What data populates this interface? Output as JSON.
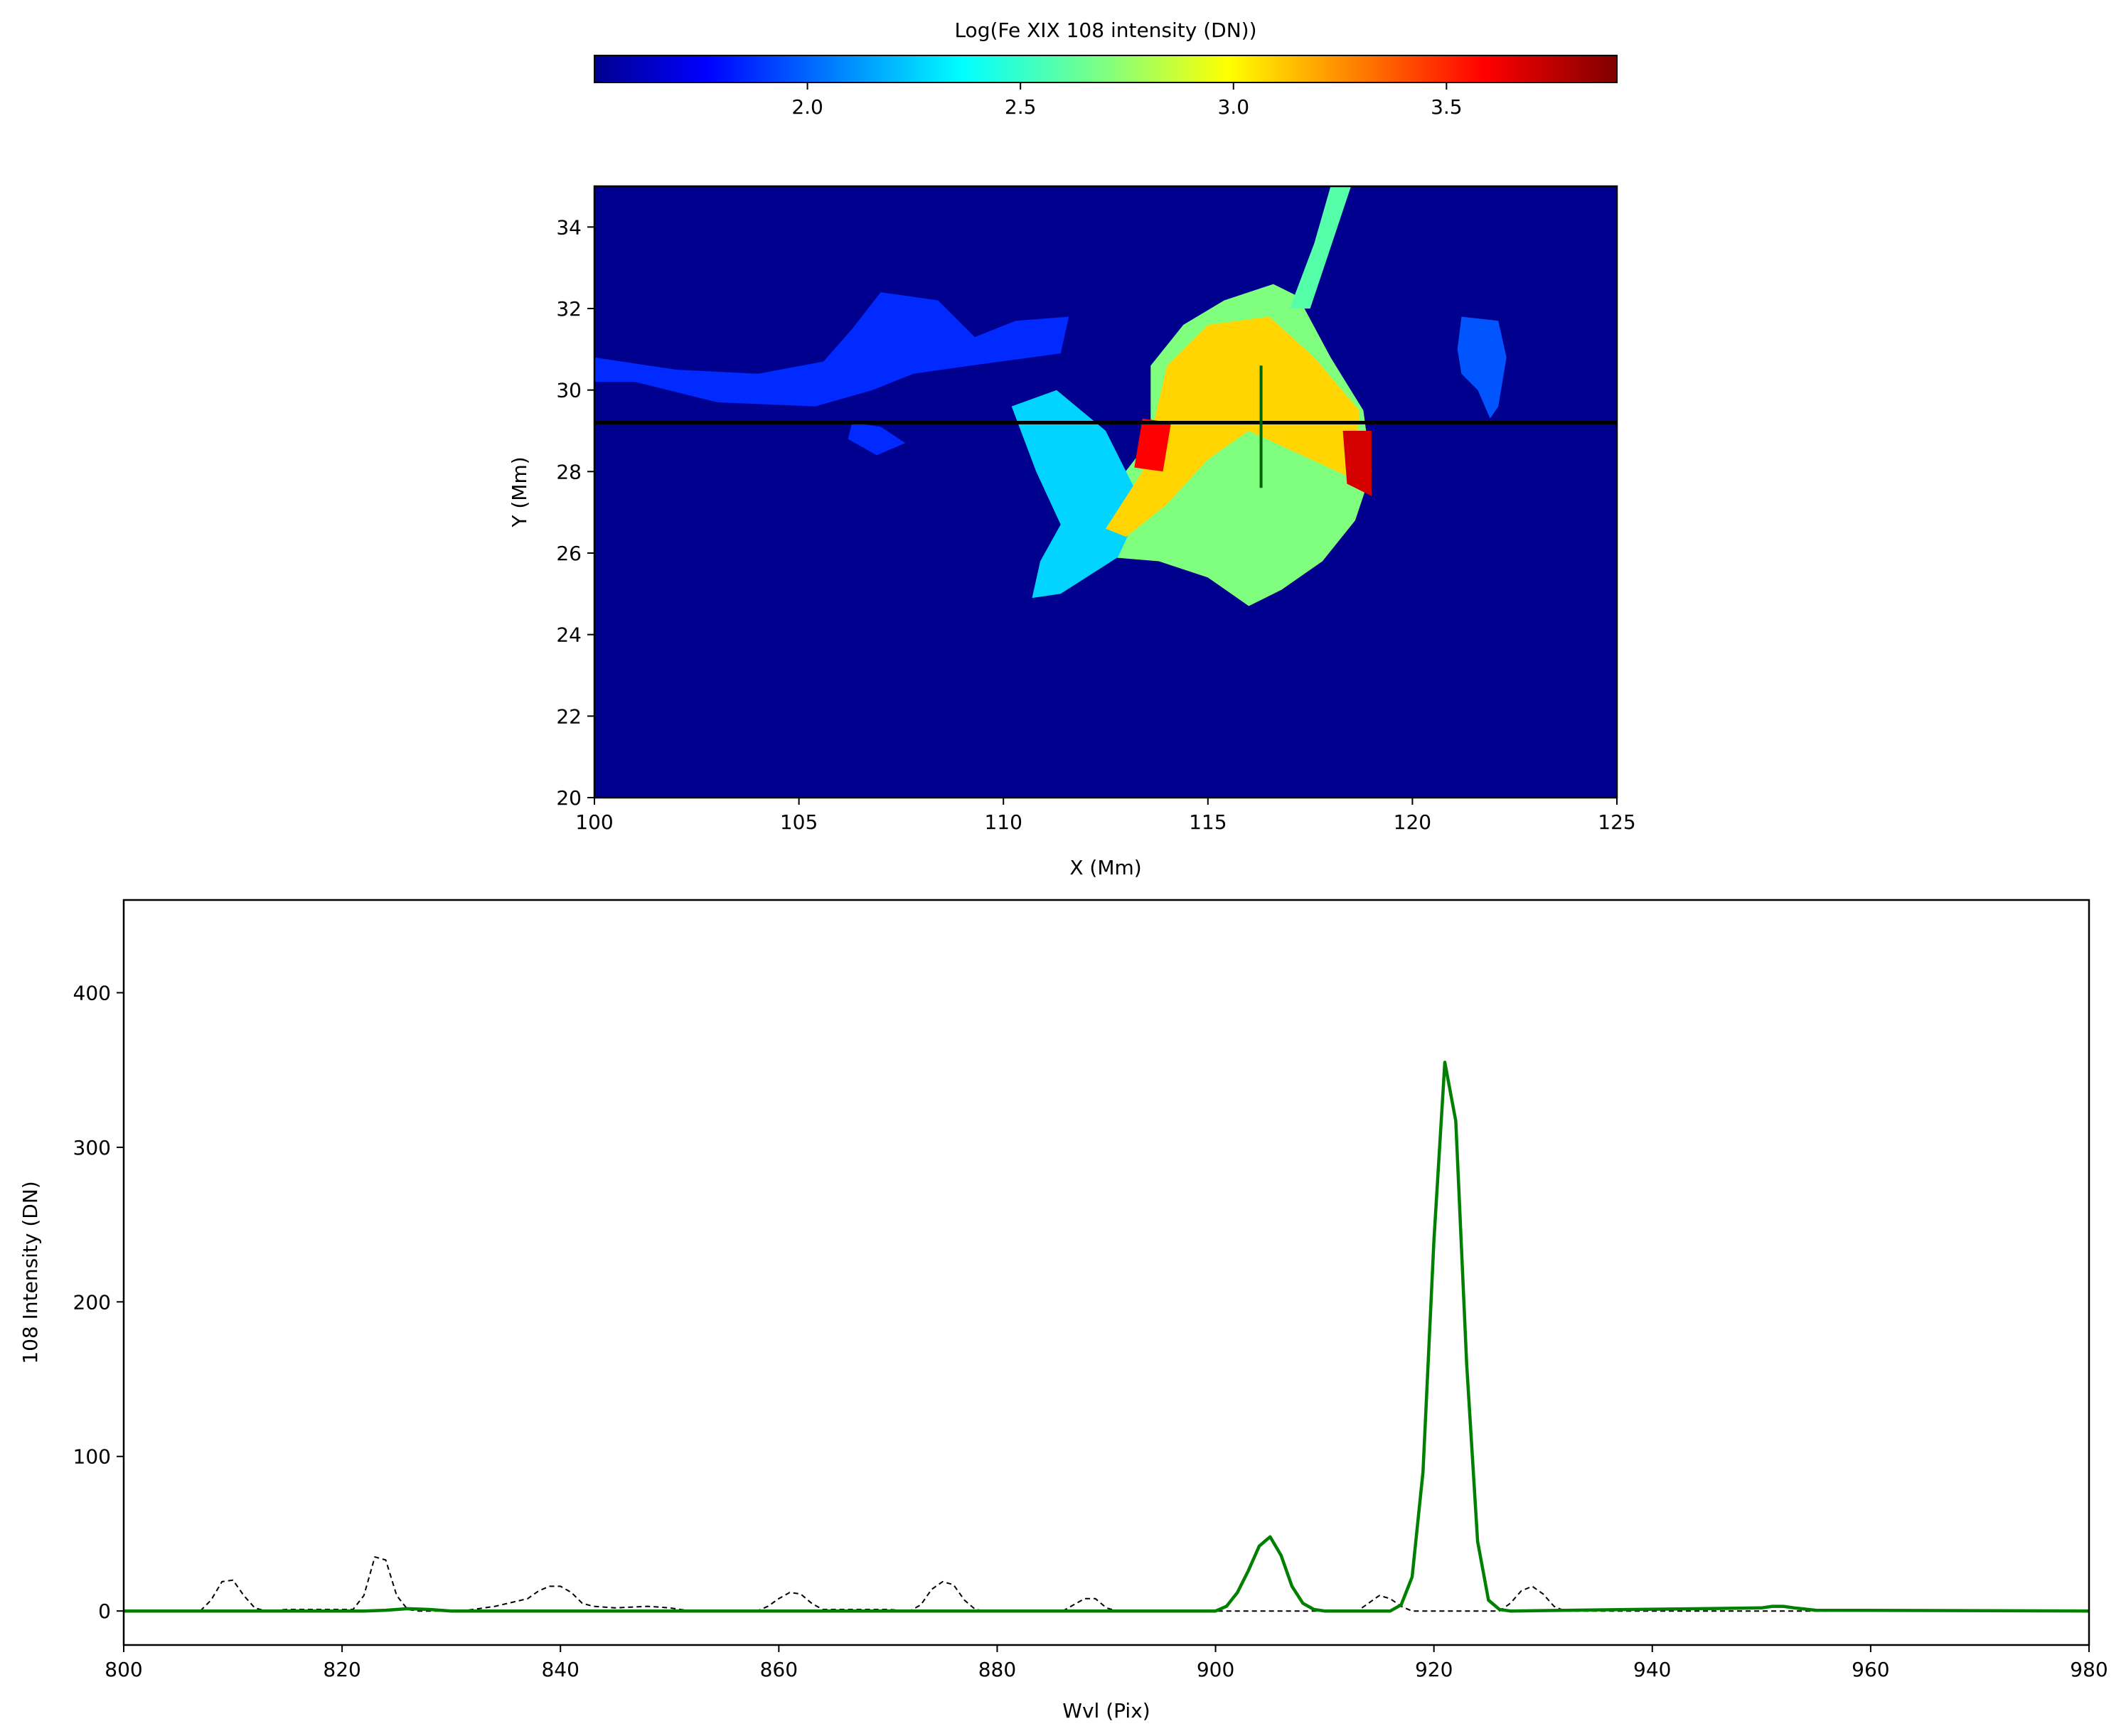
{
  "chart_data": [
    {
      "type": "heatmap",
      "xlabel": "X (Mm)",
      "ylabel": "Y (Mm)",
      "xlim": [
        100,
        125
      ],
      "ylim": [
        20,
        35
      ],
      "xticks": [
        100,
        105,
        110,
        115,
        120,
        125
      ],
      "yticks": [
        20,
        22,
        24,
        26,
        28,
        30,
        32,
        34
      ],
      "xtick_labels": [
        "100",
        "105",
        "110",
        "115",
        "120",
        "125"
      ],
      "ytick_labels": [
        "20",
        "22",
        "24",
        "26",
        "28",
        "30",
        "32",
        "34"
      ],
      "colormap": "jet",
      "background_color": "#00008f",
      "colorbar": {
        "label": "Log(Fe XIX 108 intensity (DN))",
        "range": [
          1.5,
          3.9
        ],
        "ticks": [
          2.0,
          2.5,
          3.0,
          3.5
        ],
        "tick_labels": [
          "2.0",
          "2.5",
          "3.0",
          "3.5"
        ],
        "placement": "top"
      },
      "regions": [
        {
          "name": "main-cloud",
          "points": [
            [
              113.6,
              30.6
            ],
            [
              114.4,
              31.6
            ],
            [
              115.4,
              32.2
            ],
            [
              116.6,
              32.6
            ],
            [
              117.2,
              32.3
            ],
            [
              118.0,
              30.8
            ],
            [
              118.8,
              29.5
            ],
            [
              119.0,
              28.0
            ],
            [
              118.6,
              26.8
            ],
            [
              117.8,
              25.8
            ],
            [
              116.8,
              25.1
            ],
            [
              116.0,
              24.7
            ],
            [
              115.0,
              25.4
            ],
            [
              113.8,
              25.8
            ],
            [
              112.6,
              25.9
            ],
            [
              111.8,
              26.3
            ],
            [
              112.6,
              27.5
            ],
            [
              113.6,
              28.8
            ]
          ],
          "value": 2.7
        },
        {
          "name": "left-band",
          "points": [
            [
              110.2,
              29.6
            ],
            [
              111.3,
              30.0
            ],
            [
              112.5,
              29.0
            ],
            [
              113.4,
              27.2
            ],
            [
              112.8,
              25.9
            ],
            [
              111.4,
              25.0
            ],
            [
              110.7,
              24.9
            ],
            [
              110.9,
              25.8
            ],
            [
              111.4,
              26.7
            ],
            [
              110.8,
              28.0
            ]
          ],
          "value": 2.3
        },
        {
          "name": "left-arc",
          "points": [
            [
              100.0,
              30.8
            ],
            [
              102.0,
              30.5
            ],
            [
              104.0,
              30.4
            ],
            [
              105.6,
              30.7
            ],
            [
              106.3,
              31.5
            ],
            [
              107.0,
              32.4
            ],
            [
              108.4,
              32.2
            ],
            [
              109.3,
              31.3
            ],
            [
              110.3,
              31.7
            ],
            [
              111.6,
              31.8
            ],
            [
              111.4,
              30.9
            ],
            [
              109.2,
              30.6
            ],
            [
              107.8,
              30.4
            ],
            [
              106.8,
              30.0
            ],
            [
              105.4,
              29.6
            ],
            [
              103.0,
              29.7
            ],
            [
              101.0,
              30.2
            ],
            [
              100.0,
              30.2
            ]
          ],
          "value": 1.9
        },
        {
          "name": "left-blob",
          "points": [
            [
              106.3,
              29.2
            ],
            [
              107.0,
              29.1
            ],
            [
              107.6,
              28.7
            ],
            [
              106.9,
              28.4
            ],
            [
              106.2,
              28.8
            ]
          ],
          "value": 1.9
        },
        {
          "name": "right-blob",
          "points": [
            [
              121.2,
              31.8
            ],
            [
              122.1,
              31.7
            ],
            [
              122.3,
              30.8
            ],
            [
              122.1,
              29.6
            ],
            [
              121.9,
              29.3
            ],
            [
              121.6,
              30.0
            ],
            [
              121.2,
              30.4
            ],
            [
              121.1,
              31.0
            ]
          ],
          "value": 2.0
        },
        {
          "name": "top-spike",
          "points": [
            [
              117.0,
              32.0
            ],
            [
              117.6,
              33.6
            ],
            [
              118.0,
              35.0
            ],
            [
              118.5,
              35.0
            ],
            [
              118.0,
              33.5
            ],
            [
              117.5,
              32.0
            ]
          ],
          "value": 2.6
        },
        {
          "name": "yellow-core",
          "points": [
            [
              114.0,
              30.6
            ],
            [
              115.0,
              31.6
            ],
            [
              116.5,
              31.8
            ],
            [
              117.6,
              30.8
            ],
            [
              118.7,
              29.5
            ],
            [
              118.6,
              27.8
            ],
            [
              117.3,
              28.4
            ],
            [
              116.0,
              29.0
            ],
            [
              115.0,
              28.3
            ],
            [
              114.0,
              27.2
            ],
            [
              113.0,
              26.4
            ],
            [
              112.5,
              26.6
            ],
            [
              113.4,
              28.0
            ]
          ],
          "value": 3.1
        },
        {
          "name": "red-left",
          "points": [
            [
              113.4,
              29.3
            ],
            [
              114.1,
              29.2
            ],
            [
              113.9,
              28.0
            ],
            [
              113.2,
              28.1
            ]
          ],
          "value": 3.6
        },
        {
          "name": "red-right",
          "points": [
            [
              118.3,
              29.0
            ],
            [
              119.0,
              29.0
            ],
            [
              119.0,
              27.4
            ],
            [
              118.4,
              27.7
            ]
          ],
          "value": 3.7
        }
      ],
      "crosshair": {
        "y": 29.2,
        "x": 116.3,
        "y_range": [
          27.6,
          30.6
        ]
      }
    },
    {
      "type": "line",
      "xlabel": "Wvl (Pix)",
      "ylabel": "108 Intensity (DN)",
      "xlim": [
        800,
        980
      ],
      "ylim": [
        -22,
        460
      ],
      "xticks": [
        800,
        820,
        840,
        860,
        880,
        900,
        920,
        940,
        960,
        980
      ],
      "yticks": [
        0,
        100,
        200,
        300,
        400
      ],
      "xtick_labels": [
        "800",
        "820",
        "840",
        "860",
        "880",
        "900",
        "920",
        "940",
        "960",
        "980"
      ],
      "ytick_labels": [
        "0",
        "100",
        "200",
        "300",
        "400"
      ],
      "series": [
        {
          "style": "solid",
          "color": "#008000",
          "points": [
            [
              800,
              0
            ],
            [
              822,
              0
            ],
            [
              824,
              0.5
            ],
            [
              826,
              1.5
            ],
            [
              828,
              1
            ],
            [
              830,
              0
            ],
            [
              900,
              0
            ],
            [
              901,
              3
            ],
            [
              902,
              12
            ],
            [
              903,
              26
            ],
            [
              904,
              42
            ],
            [
              905,
              48
            ],
            [
              906,
              36
            ],
            [
              907,
              16
            ],
            [
              908,
              5
            ],
            [
              909,
              1
            ],
            [
              910,
              0
            ],
            [
              916,
              0
            ],
            [
              917,
              4
            ],
            [
              918,
              22
            ],
            [
              919,
              90
            ],
            [
              920,
              240
            ],
            [
              921,
              355
            ],
            [
              922,
              317
            ],
            [
              923,
              160
            ],
            [
              924,
              45
            ],
            [
              925,
              7
            ],
            [
              926,
              1
            ],
            [
              927,
              0
            ],
            [
              950,
              2
            ],
            [
              951,
              3
            ],
            [
              952,
              3
            ],
            [
              953,
              2
            ],
            [
              955,
              0.5
            ],
            [
              980,
              0
            ]
          ]
        },
        {
          "style": "dashed",
          "color": "#000000",
          "points": [
            [
              800,
              0
            ],
            [
              807,
              0
            ],
            [
              808,
              7
            ],
            [
              809,
              19
            ],
            [
              810,
              20
            ],
            [
              811,
              10
            ],
            [
              812,
              2
            ],
            [
              813,
              0
            ],
            [
              815,
              1
            ],
            [
              821,
              1
            ],
            [
              822,
              10
            ],
            [
              823,
              35
            ],
            [
              824,
              33
            ],
            [
              825,
              10
            ],
            [
              826,
              1
            ],
            [
              827,
              0
            ],
            [
              831,
              0
            ],
            [
              834,
              3
            ],
            [
              837,
              8
            ],
            [
              838,
              13
            ],
            [
              839,
              16
            ],
            [
              840,
              16
            ],
            [
              841,
              12
            ],
            [
              842,
              5
            ],
            [
              843,
              3
            ],
            [
              845,
              2
            ],
            [
              848,
              3
            ],
            [
              850,
              2
            ],
            [
              852,
              0
            ],
            [
              858,
              0
            ],
            [
              859,
              3
            ],
            [
              860,
              8
            ],
            [
              861,
              12
            ],
            [
              862,
              11
            ],
            [
              863,
              5
            ],
            [
              864,
              1
            ],
            [
              866,
              1
            ],
            [
              870,
              1
            ],
            [
              872,
              0
            ],
            [
              873,
              4
            ],
            [
              874,
              14
            ],
            [
              875,
              19
            ],
            [
              876,
              17
            ],
            [
              877,
              7
            ],
            [
              878,
              1
            ],
            [
              879,
              0
            ],
            [
              886,
              0
            ],
            [
              887,
              4
            ],
            [
              888,
              8
            ],
            [
              889,
              8
            ],
            [
              890,
              2
            ],
            [
              891,
              0
            ],
            [
              913,
              0
            ],
            [
              914,
              5
            ],
            [
              915,
              10
            ],
            [
              916,
              8
            ],
            [
              917,
              3
            ],
            [
              918,
              0
            ],
            [
              926,
              0
            ],
            [
              927,
              5
            ],
            [
              928,
              13
            ],
            [
              929,
              16
            ],
            [
              930,
              11
            ],
            [
              931,
              3
            ],
            [
              932,
              0
            ],
            [
              980,
              0
            ]
          ]
        }
      ]
    }
  ]
}
